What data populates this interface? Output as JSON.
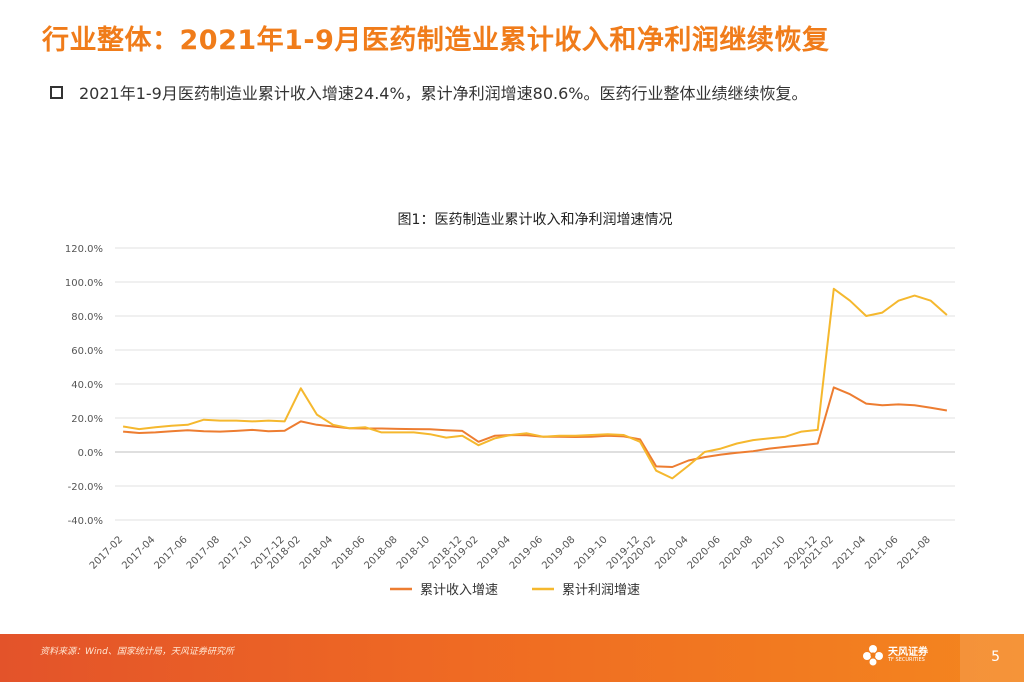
{
  "slide": {
    "title": "行业整体：2021年1-9月医药制造业累计收入和净利润继续恢复",
    "bullet": "2021年1-9月医药制造业累计收入增速24.4%，累计净利润增速80.6%。医药行业整体业绩继续恢复。"
  },
  "footer": {
    "source": "资料来源：Wind、国家统计局，天风证券研究所",
    "logo_cn": "天风证券",
    "logo_en": "TF SECURITIES",
    "page_number": "5"
  },
  "colors": {
    "title": "#f07c1a",
    "series_revenue": "#ed7d31",
    "series_profit": "#f5b82e",
    "footer": "#ef6a23"
  },
  "chart_data": {
    "type": "line",
    "title": "图1：医药制造业累计收入和净利润增速情况",
    "x": [
      "2017-02",
      "2017-03",
      "2017-04",
      "2017-05",
      "2017-06",
      "2017-07",
      "2017-08",
      "2017-09",
      "2017-10",
      "2017-11",
      "2017-12",
      "2018-02",
      "2018-03",
      "2018-04",
      "2018-05",
      "2018-06",
      "2018-07",
      "2018-08",
      "2018-09",
      "2018-10",
      "2018-11",
      "2018-12",
      "2019-02",
      "2019-03",
      "2019-04",
      "2019-05",
      "2019-06",
      "2019-07",
      "2019-08",
      "2019-09",
      "2019-10",
      "2019-11",
      "2019-12",
      "2020-02",
      "2020-03",
      "2020-04",
      "2020-05",
      "2020-06",
      "2020-07",
      "2020-08",
      "2020-09",
      "2020-10",
      "2020-11",
      "2020-12",
      "2021-02",
      "2021-03",
      "2021-04",
      "2021-05",
      "2021-06",
      "2021-07",
      "2021-08",
      "2021-09"
    ],
    "tick_labels": [
      "2017-02",
      "2017-04",
      "2017-06",
      "2017-08",
      "2017-10",
      "2017-12",
      "2018-02",
      "2018-04",
      "2018-06",
      "2018-08",
      "2018-10",
      "2018-12",
      "2019-02",
      "2019-04",
      "2019-06",
      "2019-08",
      "2019-10",
      "2019-12",
      "2020-02",
      "2020-04",
      "2020-06",
      "2020-08",
      "2020-10",
      "2020-12",
      "2021-02",
      "2021-04",
      "2021-06",
      "2021-08"
    ],
    "series": [
      {
        "name": "累计收入增速",
        "values": [
          12.0,
          11.2,
          11.5,
          12.2,
          12.8,
          12.2,
          12.0,
          12.4,
          13.0,
          12.2,
          12.5,
          18.0,
          16.0,
          15.0,
          14.0,
          13.8,
          13.8,
          13.6,
          13.5,
          13.4,
          12.8,
          12.4,
          6.0,
          9.5,
          10.0,
          9.8,
          9.0,
          9.0,
          8.8,
          9.0,
          9.5,
          9.2,
          7.5,
          -8.5,
          -8.8,
          -5.0,
          -3.0,
          -1.5,
          -0.5,
          0.5,
          2.0,
          3.0,
          4.0,
          5.0,
          38.0,
          34.0,
          28.5,
          27.5,
          28.0,
          27.5,
          26.0,
          24.4
        ]
      },
      {
        "name": "累计利润增速",
        "values": [
          15.0,
          13.5,
          14.5,
          15.5,
          16.0,
          19.0,
          18.5,
          18.5,
          18.0,
          18.5,
          18.0,
          37.5,
          22.0,
          16.0,
          14.0,
          14.5,
          11.5,
          11.5,
          11.5,
          10.5,
          8.5,
          9.5,
          4.0,
          8.0,
          10.0,
          11.0,
          9.0,
          9.5,
          9.5,
          10.0,
          10.5,
          10.0,
          6.0,
          -11.0,
          -15.5,
          -8.0,
          0.0,
          2.0,
          5.0,
          7.0,
          8.0,
          9.0,
          12.0,
          13.0,
          96.0,
          89.0,
          80.0,
          82.0,
          89.0,
          92.0,
          89.0,
          80.6
        ]
      }
    ],
    "ylim": [
      -40,
      120
    ],
    "yticks": [
      "-40.0%",
      "-20.0%",
      "0.0%",
      "20.0%",
      "40.0%",
      "60.0%",
      "80.0%",
      "100.0%",
      "120.0%"
    ],
    "grid": true,
    "legend": "bottom"
  }
}
